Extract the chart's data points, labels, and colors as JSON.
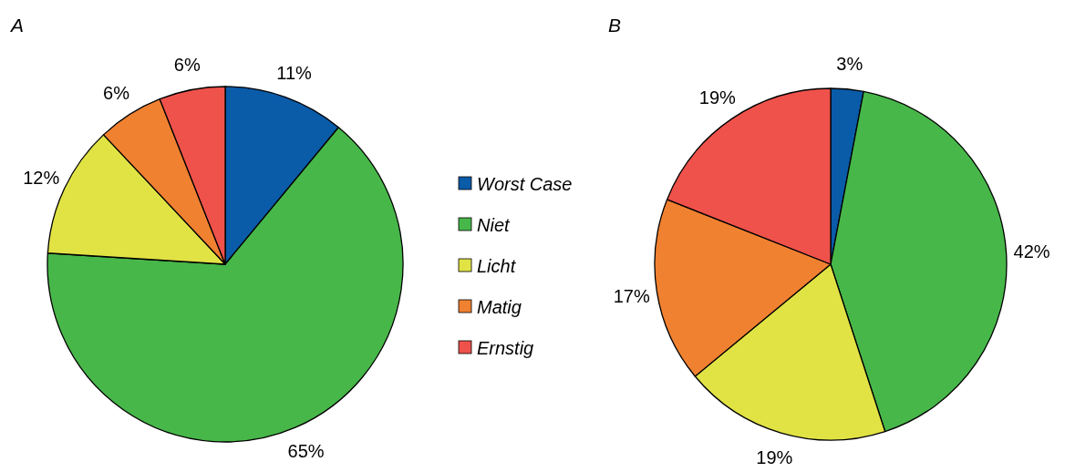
{
  "chart_data": [
    {
      "type": "pie",
      "title": "A",
      "categories": [
        "Worst Case",
        "Niet",
        "Licht",
        "Matig",
        "Ernstig"
      ],
      "values": [
        11,
        65,
        12,
        6,
        6
      ],
      "colors": [
        "#0a5ba8",
        "#47b749",
        "#e1e345",
        "#f08131",
        "#ef524b"
      ],
      "value_labels": [
        "11%",
        "65%",
        "12%",
        "6%",
        "6%"
      ],
      "legend": "right"
    },
    {
      "type": "pie",
      "title": "B",
      "categories": [
        null,
        null,
        null,
        null,
        null
      ],
      "values": [
        3,
        42,
        19,
        17,
        19
      ],
      "colors": [
        "#0a5ba8",
        "#47b749",
        "#e1e345",
        "#f08131",
        "#ef524b"
      ],
      "value_labels": [
        "3%",
        "42%",
        "19%",
        "17%",
        "19%"
      ]
    }
  ]
}
